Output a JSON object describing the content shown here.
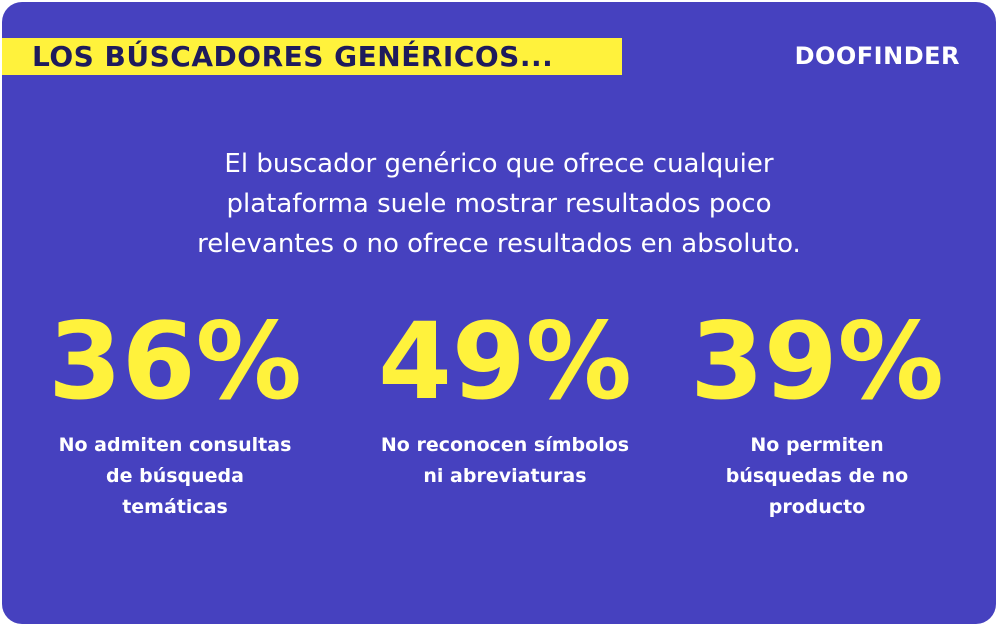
{
  "header": {
    "title": "LOS BÚSCADORES GENÉRICOS...",
    "logo": "DOOFINDER"
  },
  "intro": {
    "lines": [
      "El buscador genérico que ofrece cualquier",
      "plataforma suele mostrar resultados poco",
      "relevantes o no ofrece resultados en absoluto."
    ]
  },
  "stats": [
    {
      "value": "36%",
      "label": [
        "No admiten consultas",
        "de búsqueda",
        "temáticas"
      ]
    },
    {
      "value": "49%",
      "label": [
        "No reconocen símbolos",
        "ni abreviaturas"
      ]
    },
    {
      "value": "39%",
      "label": [
        "No permiten",
        "búsquedas de no",
        "producto"
      ]
    }
  ]
}
